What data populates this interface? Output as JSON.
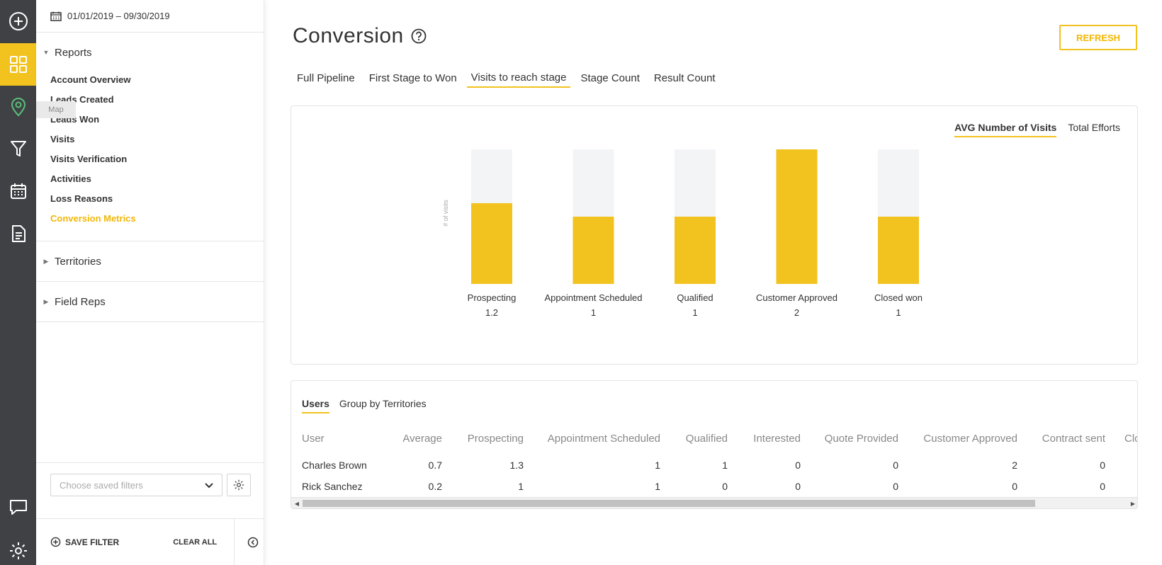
{
  "rail": {
    "items": [
      "add-icon",
      "dashboard-icon",
      "map-pin-icon",
      "funnel-icon",
      "calendar-icon",
      "document-icon",
      "chat-icon",
      "gear-icon"
    ],
    "map_tooltip": "Map"
  },
  "sidebar": {
    "date_range": "01/01/2019 – 09/30/2019",
    "reports_title": "Reports",
    "reports": [
      {
        "label": "Account Overview"
      },
      {
        "label": "Leads Created"
      },
      {
        "label": "Leads Won"
      },
      {
        "label": "Visits"
      },
      {
        "label": "Visits Verification"
      },
      {
        "label": "Activities"
      },
      {
        "label": "Loss Reasons"
      },
      {
        "label": "Conversion Metrics"
      }
    ],
    "territories_title": "Territories",
    "field_reps_title": "Field Reps",
    "saved_filters_placeholder": "Choose saved filters",
    "save_filter_label": "SAVE FILTER",
    "clear_all_label": "CLEAR ALL"
  },
  "main": {
    "title": "Conversion",
    "refresh_label": "REFRESH",
    "tabs": [
      {
        "label": "Full Pipeline"
      },
      {
        "label": "First Stage to Won"
      },
      {
        "label": "Visits to reach stage"
      },
      {
        "label": "Stage Count"
      },
      {
        "label": "Result Count"
      }
    ],
    "active_tab": 2,
    "metric_toggle": [
      "AVG Number of Visits",
      "Total Efforts"
    ],
    "table_tabs": [
      "Users",
      "Group by Territories"
    ],
    "table": {
      "columns": [
        "User",
        "Average",
        "Prospecting",
        "Appointment Scheduled",
        "Qualified",
        "Interested",
        "Quote Provided",
        "Customer Approved",
        "Contract sent",
        "Closed"
      ],
      "rows": [
        [
          "Charles Brown",
          "0.7",
          "1.3",
          "1",
          "1",
          "0",
          "0",
          "2",
          "0",
          ""
        ],
        [
          "Rick Sanchez",
          "0.2",
          "1",
          "1",
          "0",
          "0",
          "0",
          "0",
          "0",
          ""
        ]
      ]
    }
  },
  "colors": {
    "accent": "#f2c21f",
    "bar_bg": "#f3f4f6",
    "rail_bg": "#3f4145",
    "active_link": "#f2b705"
  },
  "chart_data": {
    "type": "bar",
    "ylabel": "# of visits",
    "categories": [
      "Prospecting",
      "Appointment Scheduled",
      "Qualified",
      "Customer Approved",
      "Closed won"
    ],
    "values": [
      1.2,
      1,
      1,
      2,
      1
    ],
    "value_labels": [
      "1.2",
      "1",
      "1",
      "2",
      "1"
    ],
    "ylim": [
      0,
      2
    ],
    "series": [
      {
        "name": "AVG Number of Visits",
        "values": [
          1.2,
          1,
          1,
          2,
          1
        ]
      }
    ]
  }
}
